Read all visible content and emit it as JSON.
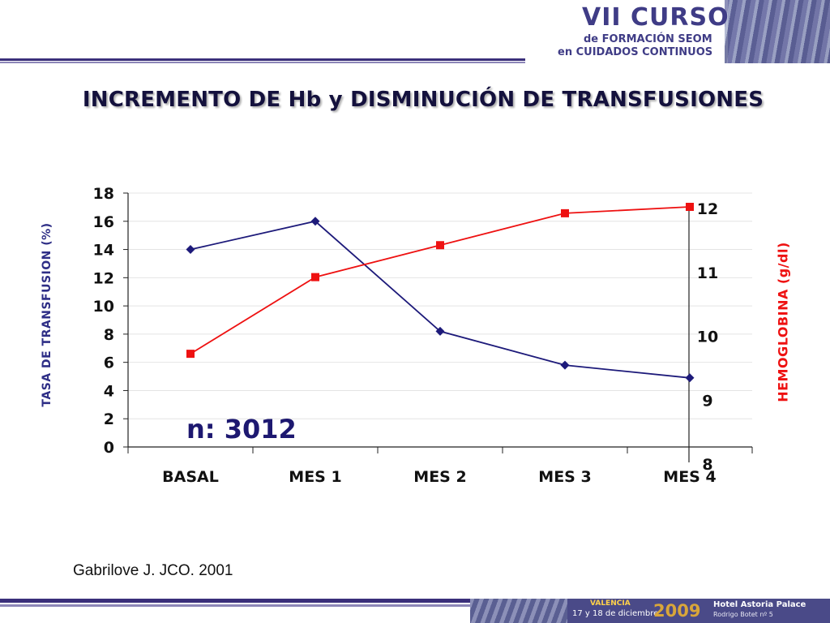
{
  "banner": {
    "line1": "VII CURSO",
    "line2": "de FORMACIÓN SEOM",
    "line3": "en CUIDADOS CONTINUOS"
  },
  "footer": {
    "city": "VALENCIA",
    "dates": "17 y 18 de diciembre",
    "year": "2009",
    "hotel": "Hotel Astoria Palace",
    "address": "Rodrigo Botet nº 5"
  },
  "colors": {
    "transfusion_series": "#1d1a7a",
    "hemoglobin_series": "#ee1111",
    "title": "#14113d"
  },
  "n_label": "n: 3012",
  "citation": "Gabrilove J. JCO. 2001",
  "chart_data": {
    "type": "line",
    "title": "INCREMENTO DE Hb y DISMINUCIÓN DE TRANSFUSIONES",
    "categories": [
      "BASAL",
      "MES 1",
      "MES 2",
      "MES 3",
      "MES 4"
    ],
    "ylabel_left": "TASA DE TRANSFUSION (%)",
    "ylabel_right": "HEMOGLOBINA (g/dl)",
    "ylim_left": [
      0,
      18
    ],
    "yticks_left": [
      "0",
      "2",
      "4",
      "6",
      "8",
      "10",
      "12",
      "14",
      "16",
      "18"
    ],
    "ylim_right": [
      8,
      12
    ],
    "yticks_right": [
      "8",
      "9",
      "10",
      "11",
      "12"
    ],
    "grid": true,
    "legend": "none",
    "series": [
      {
        "axis": "left",
        "marker": "diamond",
        "values": [
          14,
          16,
          8.2,
          5.8,
          4.9
        ]
      },
      {
        "axis": "right",
        "marker": "square",
        "values": [
          9.7,
          10.9,
          11.4,
          11.9,
          12.0
        ]
      }
    ]
  }
}
